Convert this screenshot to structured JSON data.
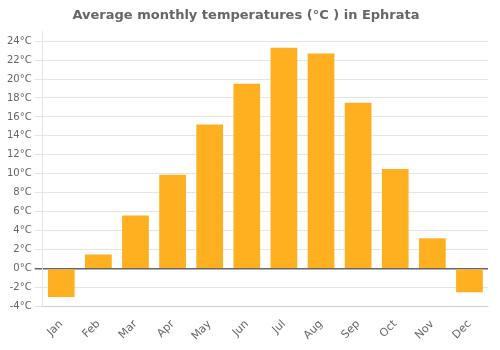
{
  "chart_data": {
    "type": "bar",
    "title": "Average monthly temperatures (°C ) in Ephrata",
    "categories": [
      "Jan",
      "Feb",
      "Mar",
      "Apr",
      "May",
      "Jun",
      "Jul",
      "Aug",
      "Sep",
      "Oct",
      "Nov",
      "Dec"
    ],
    "values": [
      -3.0,
      1.5,
      5.6,
      9.9,
      15.2,
      19.5,
      23.3,
      22.7,
      17.5,
      10.5,
      3.2,
      -2.5
    ],
    "color": "#FFB020",
    "ylim": [
      -4,
      25
    ],
    "yticks": [
      {
        "value": -4,
        "label": "-4°C"
      },
      {
        "value": -2,
        "label": "-2°C"
      },
      {
        "value": 0,
        "label": "0°C"
      },
      {
        "value": 2,
        "label": "2°C"
      },
      {
        "value": 4,
        "label": "4°C"
      },
      {
        "value": 6,
        "label": "6°C"
      },
      {
        "value": 8,
        "label": "8°C"
      },
      {
        "value": 10,
        "label": "10°C"
      },
      {
        "value": 12,
        "label": "12°C"
      },
      {
        "value": 14,
        "label": "14°C"
      },
      {
        "value": 16,
        "label": "16°C"
      },
      {
        "value": 18,
        "label": "18°C"
      },
      {
        "value": 20,
        "label": "20°C"
      },
      {
        "value": 22,
        "label": "22°C"
      },
      {
        "value": 24,
        "label": "24°C"
      }
    ],
    "grid": true
  }
}
